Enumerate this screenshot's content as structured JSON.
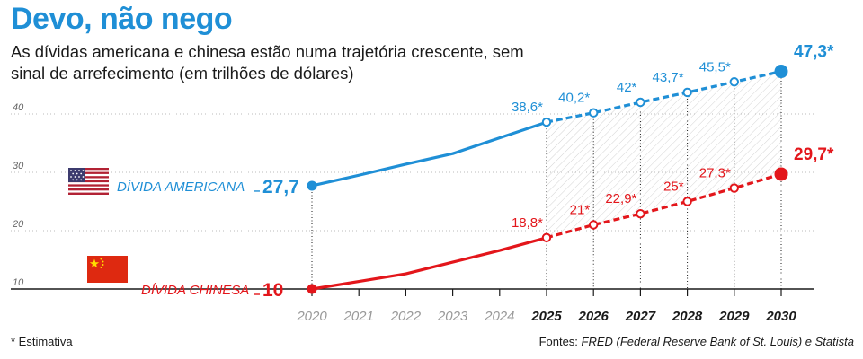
{
  "title": "Devo, não nego",
  "subtitle": "As dívidas americana e chinesa estão numa trajetória crescente, sem sinal de arrefecimento (em trilhões de dólares)",
  "footnote": "* Estimativa",
  "source_prefix": "Fontes: ",
  "source_names": "FRED (Federal Reserve Bank of St. Louis) e Statista",
  "colors": {
    "usa": "#1f8fd6",
    "china": "#e3161b",
    "axis": "#1a1a1a",
    "grid": "#bbbbbb"
  },
  "chart_data": {
    "type": "line",
    "x": [
      2020,
      2021,
      2022,
      2023,
      2024,
      2025,
      2026,
      2027,
      2028,
      2029,
      2030
    ],
    "x_tick_labels": [
      "2020",
      "2021",
      "2022",
      "2023",
      "2024",
      "2025",
      "2026",
      "2027",
      "2028",
      "2029",
      "2030"
    ],
    "bold_years": [
      2025,
      2026,
      2027,
      2028,
      2029,
      2030
    ],
    "estimate_from": 2025,
    "ylim": [
      10,
      50
    ],
    "y_ticks": [
      10,
      20,
      30,
      40
    ],
    "y_tick_labels": [
      "10",
      "20",
      "30",
      "40"
    ],
    "series": [
      {
        "key": "usa",
        "name": "DÍVIDA AMERICANA",
        "start_label": "27,7",
        "flag": "usa-flag",
        "values": [
          27.7,
          29.5,
          31.4,
          33.2,
          35.9,
          38.6,
          40.2,
          42,
          43.7,
          45.5,
          47.3
        ],
        "labels": [
          null,
          null,
          null,
          null,
          null,
          "38,6*",
          "40,2*",
          "42*",
          "43,7*",
          "45,5*",
          "47,3*"
        ]
      },
      {
        "key": "china",
        "name": "DÍVIDA CHINESA",
        "start_label": "10",
        "flag": "china-flag",
        "values": [
          10,
          11.3,
          12.6,
          14.6,
          16.6,
          18.8,
          21,
          22.9,
          25,
          27.3,
          29.7
        ],
        "labels": [
          null,
          null,
          null,
          null,
          null,
          "18,8*",
          "21*",
          "22,9*",
          "25*",
          "27,3*",
          "29,7*"
        ]
      }
    ]
  }
}
